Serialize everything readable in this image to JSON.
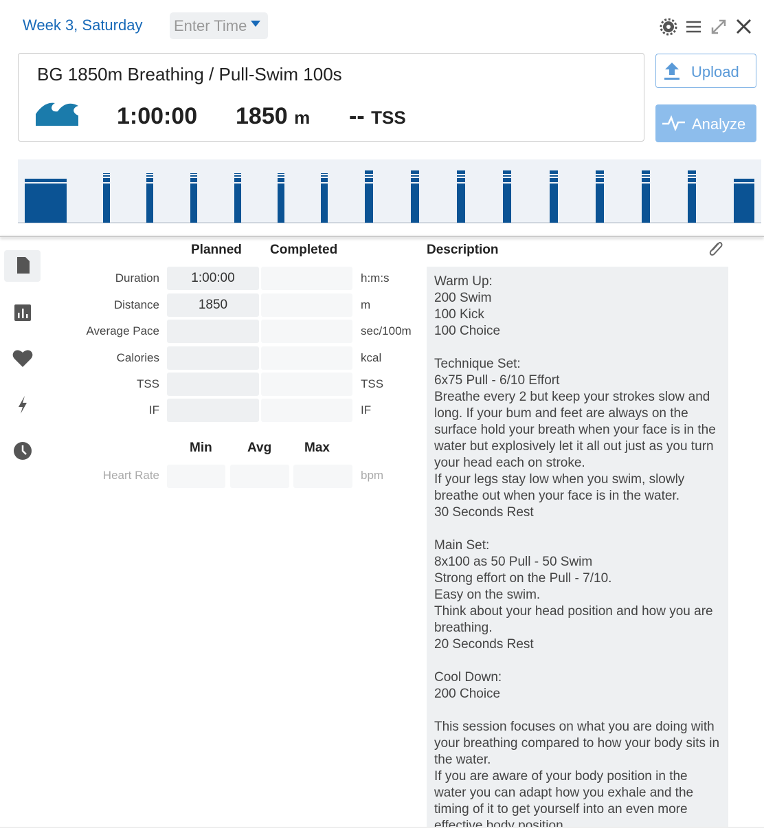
{
  "header": {
    "title": "Week 3, Saturday",
    "time_placeholder": "Enter Time"
  },
  "workout": {
    "title": "BG 1850m Breathing / Pull-Swim 100s",
    "duration": "1:00:00",
    "distance": {
      "value": 1850,
      "unit": "m"
    },
    "tss": {
      "value": "--",
      "unit": "TSS"
    }
  },
  "buttons": {
    "upload": "Upload",
    "analyze": "Analyze"
  },
  "metrics": {
    "columns": [
      "Planned",
      "Completed"
    ],
    "rows": [
      {
        "label": "Duration",
        "planned": "1:00:00",
        "unit": "h:m:s"
      },
      {
        "label": "Distance",
        "planned": "1850",
        "unit": "m"
      },
      {
        "label": "Average Pace",
        "unit": "sec/100m"
      },
      {
        "label": "Calories",
        "unit": "kcal"
      },
      {
        "label": "TSS",
        "unit": "TSS"
      },
      {
        "label": "IF",
        "unit": "IF"
      }
    ]
  },
  "heart_rate": {
    "columns": [
      "Min",
      "Avg",
      "Max"
    ],
    "label": "Heart Rate",
    "unit": "bpm"
  },
  "description": {
    "title": "Description",
    "paragraphs": [
      [
        "Warm Up:",
        "200 Swim",
        "100 Kick",
        "100 Choice"
      ],
      [
        "Technique Set:",
        "6x75 Pull - 6/10 Effort",
        "Breathe every 2 but keep your strokes slow and long. If your bum and feet are always on the surface hold your breath when your face is in the water but explosively let it all out just as you turn your head each on stroke.",
        "If your legs stay low when you swim, slowly breathe out when your face is in the water.",
        "30 Seconds Rest"
      ],
      [
        "Main Set:",
        "8x100 as 50 Pull - 50 Swim",
        "Strong effort on the Pull - 7/10.",
        "Easy on the swim.",
        "Think about your head position and how you are breathing.",
        "20 Seconds Rest"
      ],
      [
        "Cool Down:",
        "200 Choice"
      ],
      [
        "This session focuses on what you are doing with your breathing compared to how your body sits in the water.",
        "If you are aware of your body position in the water you can adapt how you exhale and the timing of it to get yourself into an even more effective body position."
      ]
    ]
  }
}
